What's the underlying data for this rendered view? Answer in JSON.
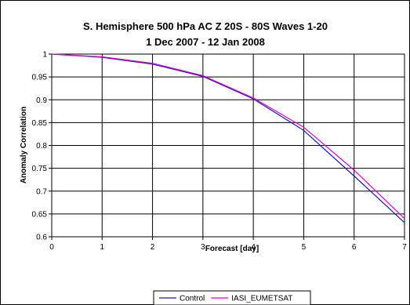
{
  "chart_data": {
    "type": "line",
    "title_line1": "S. Hemisphere 500 hPa AC Z   20S - 80S   Waves 1-20",
    "title_line2": "1 Dec 2007 - 12 Jan 2008",
    "xlabel": "Forecast [day]",
    "ylabel": "Anomaly Correlation",
    "xlim": [
      0,
      7
    ],
    "ylim": [
      0.6,
      1
    ],
    "x_ticks": [
      "0",
      "1",
      "2",
      "3",
      "4",
      "5",
      "6",
      "7"
    ],
    "y_ticks": [
      "0.6",
      "0.65",
      "0.7",
      "0.75",
      "0.8",
      "0.85",
      "0.9",
      "0.95",
      "1"
    ],
    "grid": true,
    "legend_position": "bottom",
    "x": [
      0,
      1,
      2,
      3,
      4,
      5,
      6,
      7
    ],
    "series": [
      {
        "name": "Control",
        "color": "#1a1a9c",
        "values": [
          1.0,
          0.993,
          0.978,
          0.951,
          0.902,
          0.833,
          0.733,
          0.631
        ]
      },
      {
        "name": "IASI_EUMETSAT",
        "color": "#e000e0",
        "values": [
          1.0,
          0.994,
          0.98,
          0.953,
          0.904,
          0.84,
          0.746,
          0.64
        ]
      }
    ]
  }
}
